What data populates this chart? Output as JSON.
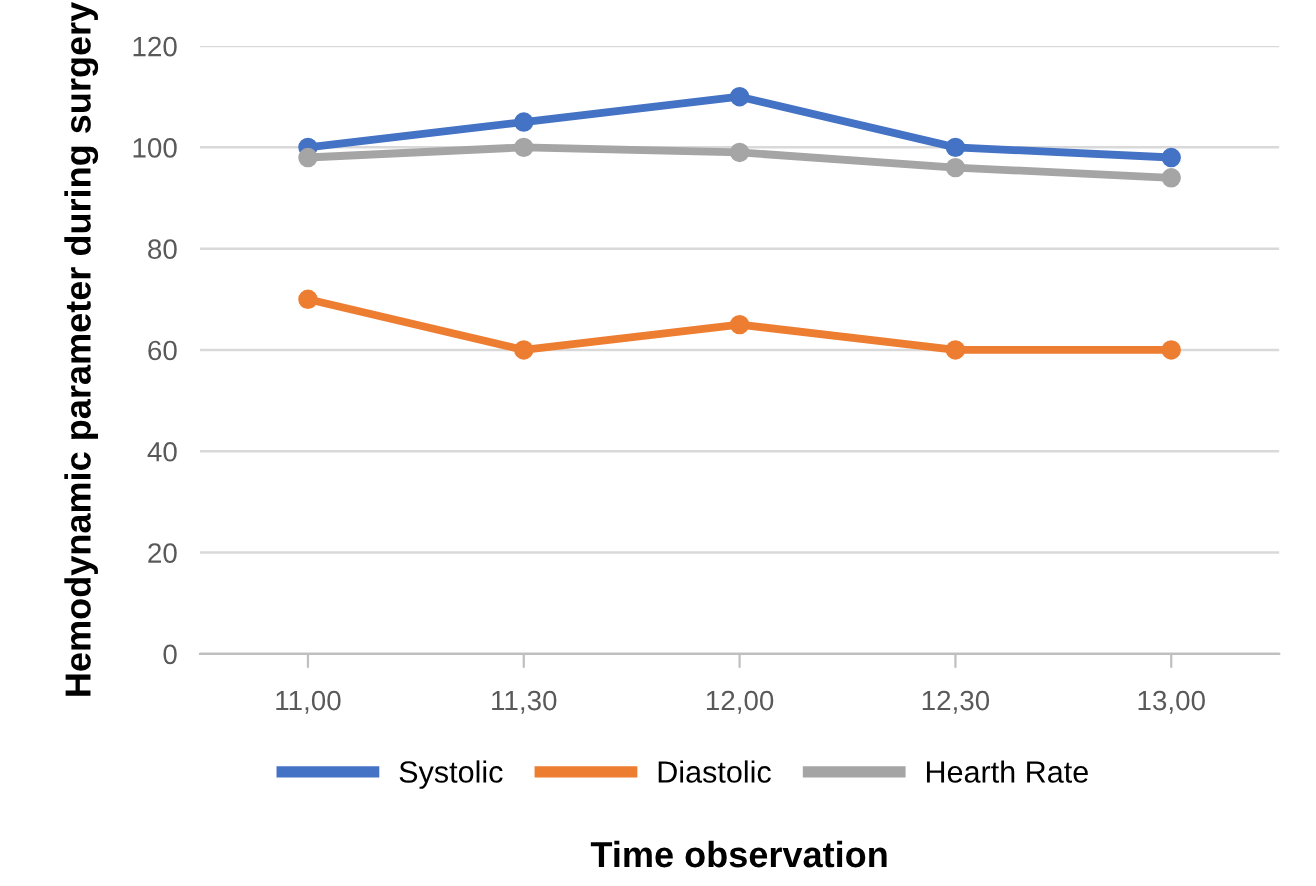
{
  "chart_data": {
    "type": "line",
    "xlabel": "Time observation",
    "ylabel": "Hemodynamic parameter during surgery",
    "categories": [
      "11,00",
      "11,30",
      "12,00",
      "12,30",
      "13,00"
    ],
    "series": [
      {
        "name": "Systolic",
        "color": "#4472c4",
        "values": [
          100,
          105,
          110,
          100,
          98
        ]
      },
      {
        "name": "Diastolic",
        "color": "#ed7d31",
        "values": [
          70,
          60,
          65,
          60,
          60
        ]
      },
      {
        "name": "Hearth Rate",
        "color": "#a5a5a5",
        "values": [
          98,
          100,
          99,
          96,
          94
        ]
      }
    ],
    "ylim": [
      0,
      120
    ],
    "yticks": [
      0,
      20,
      40,
      60,
      80,
      100,
      120
    ],
    "grid": "y",
    "legend": "bottom",
    "marker": "circle",
    "line_style": "solid"
  }
}
